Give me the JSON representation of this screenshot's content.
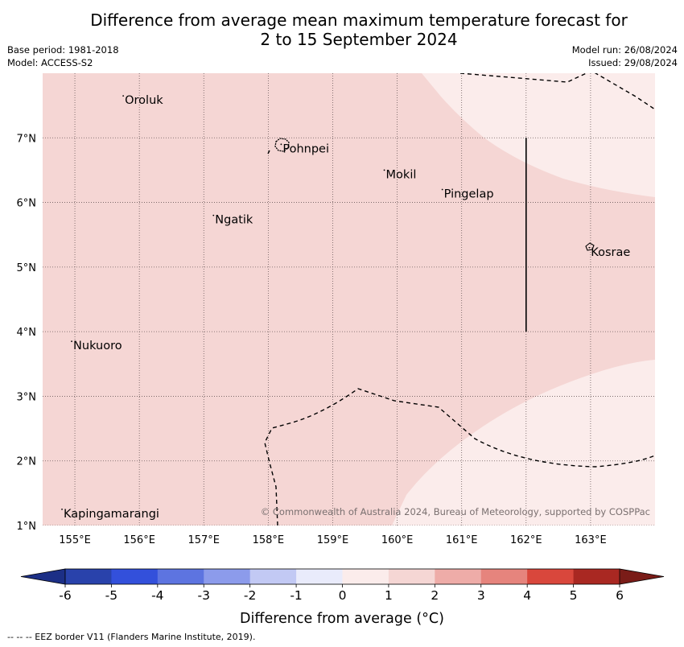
{
  "title_line1": "Difference from average mean maximum temperature forecast for",
  "title_line2": "2 to 15 September 2024",
  "meta": {
    "base_period": "Base period: 1981-2018",
    "model": "Model: ACCESS-S2",
    "model_run": "Model run: 26/08/2024",
    "issued": "Issued: 29/08/2024"
  },
  "map": {
    "lon_range": [
      154.5,
      164.0
    ],
    "lat_range": [
      1.0,
      8.0
    ],
    "lon_ticks": [
      {
        "value": 155,
        "label": "155°E"
      },
      {
        "value": 156,
        "label": "156°E"
      },
      {
        "value": 157,
        "label": "157°E"
      },
      {
        "value": 158,
        "label": "158°E"
      },
      {
        "value": 159,
        "label": "159°E"
      },
      {
        "value": 160,
        "label": "160°E"
      },
      {
        "value": 161,
        "label": "161°E"
      },
      {
        "value": 162,
        "label": "162°E"
      },
      {
        "value": 163,
        "label": "163°E"
      }
    ],
    "lat_ticks": [
      {
        "value": 1,
        "label": "1°N"
      },
      {
        "value": 2,
        "label": "2°N"
      },
      {
        "value": 3,
        "label": "3°N"
      },
      {
        "value": 4,
        "label": "4°N"
      },
      {
        "value": 5,
        "label": "5°N"
      },
      {
        "value": 6,
        "label": "6°N"
      },
      {
        "value": 7,
        "label": "7°N"
      }
    ],
    "places": [
      {
        "name": "Oroluk",
        "lon": 155.75,
        "lat": 7.65
      },
      {
        "name": "Pohnpei",
        "lon": 158.2,
        "lat": 6.9
      },
      {
        "name": "Mokil",
        "lon": 159.8,
        "lat": 6.5
      },
      {
        "name": "Pingelap",
        "lon": 160.7,
        "lat": 6.2
      },
      {
        "name": "Ngatik",
        "lon": 157.15,
        "lat": 5.8
      },
      {
        "name": "Kosrae",
        "lon": 162.98,
        "lat": 5.3
      },
      {
        "name": "Nukuoro",
        "lon": 154.95,
        "lat": 3.85
      },
      {
        "name": "Kapingamarangi",
        "lon": 154.8,
        "lat": 1.25
      }
    ],
    "vertical_marker_lon": 162.0,
    "vertical_marker_lat_range": [
      4.0,
      7.0
    ],
    "fill_colors": {
      "anomaly_1_to_2": "#f5d6d4",
      "anomaly_0_to_1": "#fbeceb"
    },
    "copyright": "© Commonwealth of Australia 2024, Bureau of Meteorology, supported by COSPPac"
  },
  "colorbar": {
    "bins": [
      {
        "from": -6,
        "to": -5,
        "color": "#2942ab"
      },
      {
        "from": -5,
        "to": -4,
        "color": "#3350db"
      },
      {
        "from": -4,
        "to": -3,
        "color": "#5d74e0"
      },
      {
        "from": -3,
        "to": -2,
        "color": "#8c9beb"
      },
      {
        "from": -2,
        "to": -1,
        "color": "#c2c9f4"
      },
      {
        "from": -1,
        "to": 0,
        "color": "#e9ebfb"
      },
      {
        "from": 0,
        "to": 1,
        "color": "#fbeceb"
      },
      {
        "from": 1,
        "to": 2,
        "color": "#f5d6d4"
      },
      {
        "from": 2,
        "to": 3,
        "color": "#eeaca8"
      },
      {
        "from": 3,
        "to": 4,
        "color": "#e6847d"
      },
      {
        "from": 4,
        "to": 5,
        "color": "#d9473c"
      },
      {
        "from": 5,
        "to": 6,
        "color": "#a92822"
      }
    ],
    "under_color": "#1c2f86",
    "over_color": "#7a1c18",
    "tick_labels": [
      "-6",
      "-5",
      "-4",
      "-3",
      "-2",
      "-1",
      "0",
      "1",
      "2",
      "3",
      "4",
      "5",
      "6"
    ],
    "label": "Difference from average (°C)"
  },
  "footnote": "-- -- -- EEZ border V11 (Flanders Marine Institute, 2019)."
}
